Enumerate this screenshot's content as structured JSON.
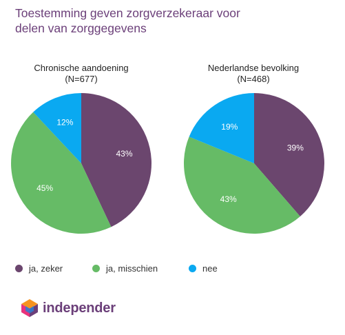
{
  "title": "Toestemming geven zorgverzekeraar voor delen van zorggegevens",
  "colors": {
    "ja_zeker": "#6b466e",
    "ja_misschien": "#66bb66",
    "nee": "#0aa9f1",
    "title": "#6b3f79"
  },
  "chart_data": [
    {
      "type": "pie",
      "title": "Chronische aandoening",
      "subtitle": "(N=677)",
      "slices": [
        {
          "label": "ja, zeker",
          "value": 43,
          "display": "43%",
          "color": "#6b466e"
        },
        {
          "label": "ja, misschien",
          "value": 45,
          "display": "45%",
          "color": "#66bb66"
        },
        {
          "label": "nee",
          "value": 12,
          "display": "12%",
          "color": "#0aa9f1"
        }
      ]
    },
    {
      "type": "pie",
      "title": "Nederlandse bevolking",
      "subtitle": "(N=468)",
      "slices": [
        {
          "label": "ja, zeker",
          "value": 39,
          "display": "39%",
          "color": "#6b466e"
        },
        {
          "label": "ja, misschien",
          "value": 43,
          "display": "43%",
          "color": "#66bb66"
        },
        {
          "label": "nee",
          "value": 19,
          "display": "19%",
          "color": "#0aa9f1"
        }
      ]
    }
  ],
  "legend": [
    {
      "label": "ja, zeker",
      "color": "#6b466e"
    },
    {
      "label": "ja, misschien",
      "color": "#66bb66"
    },
    {
      "label": "nee",
      "color": "#0aa9f1"
    }
  ],
  "brand": {
    "name": "independer",
    "icon": "hexagon-cube-icon"
  }
}
